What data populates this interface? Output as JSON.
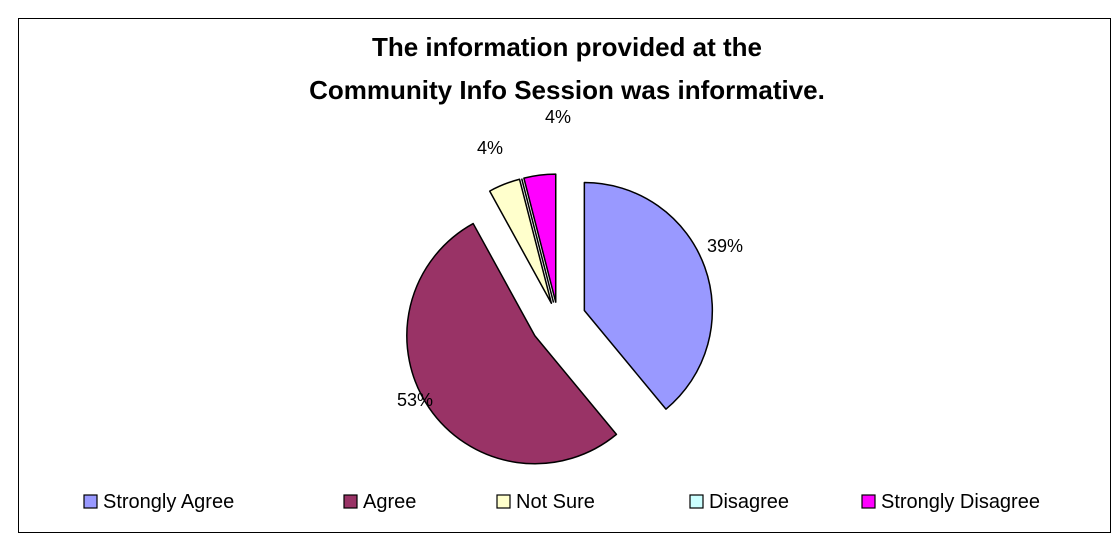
{
  "chart_data": {
    "type": "pie",
    "title": "The information provided at the\nCommunity Info Session was informative.",
    "title_lines": [
      "The information provided at the",
      "Community Info Session was informative."
    ],
    "categories": [
      "Strongly Agree",
      "Agree",
      "Not Sure",
      "Disagree",
      "Strongly Disagree"
    ],
    "values": [
      39,
      53,
      4,
      0,
      4
    ],
    "labels": [
      "39%",
      "53%",
      "4%",
      "",
      "4%"
    ],
    "colors": [
      "#9999FF",
      "#993366",
      "#FFFFCC",
      "#CCFFFF",
      "#FF00FF"
    ],
    "exploded": true,
    "legend_position": "bottom"
  }
}
